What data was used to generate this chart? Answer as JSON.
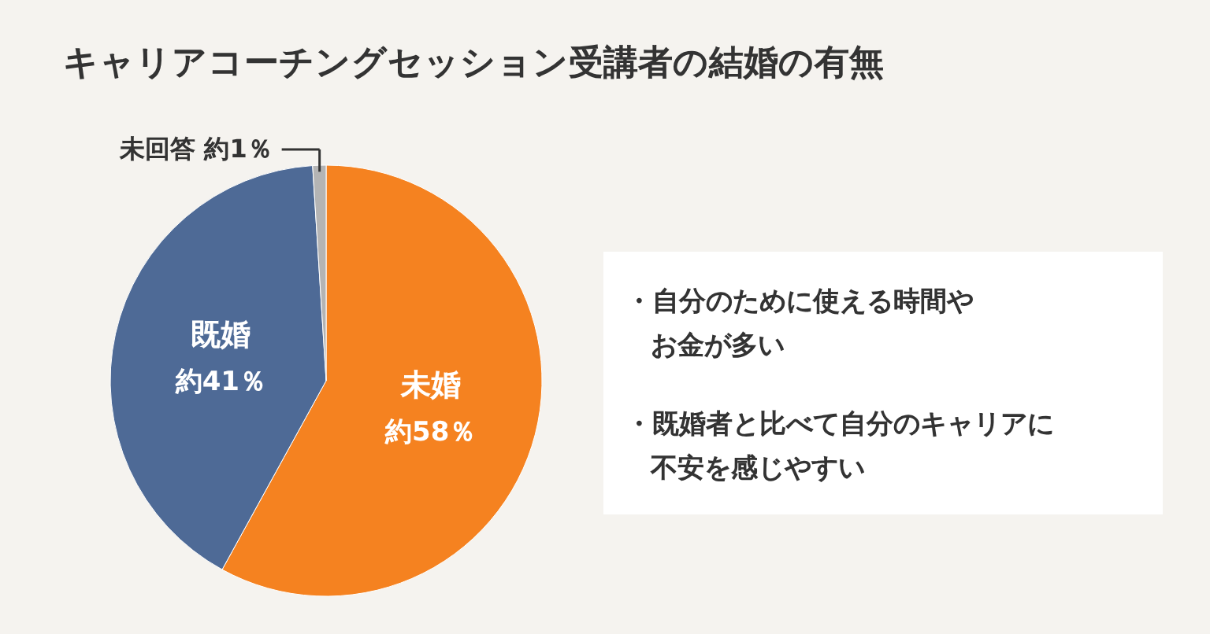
{
  "chart_data": {
    "type": "pie",
    "title": "キャリアコーチングセッション受講者の結婚の有無",
    "categories": [
      "未婚",
      "既婚",
      "未回答"
    ],
    "values": [
      58,
      41,
      1
    ],
    "colors": [
      "#f58220",
      "#4e6a96",
      "#b4b4b4"
    ],
    "value_labels": [
      "約58％",
      "約41％",
      "約1％"
    ],
    "annotations": [
      "・自分のために使える時間や",
      "お金が多い",
      "・既婚者と比べて自分のキャリアに",
      "不安を感じやすい"
    ]
  }
}
